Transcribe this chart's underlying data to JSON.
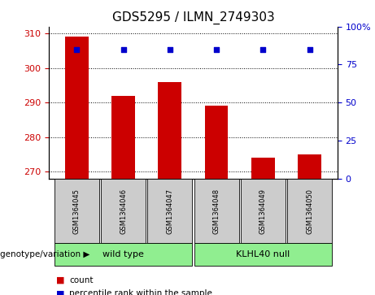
{
  "title": "GDS5295 / ILMN_2749303",
  "samples": [
    "GSM1364045",
    "GSM1364046",
    "GSM1364047",
    "GSM1364048",
    "GSM1364049",
    "GSM1364050"
  ],
  "counts": [
    309,
    292,
    296,
    289,
    274,
    275
  ],
  "percentile_ranks": [
    85,
    85,
    85,
    85,
    85,
    85
  ],
  "ylim_left": [
    268,
    312
  ],
  "ylim_right": [
    0,
    100
  ],
  "yticks_left": [
    270,
    280,
    290,
    300,
    310
  ],
  "yticks_right": [
    0,
    25,
    50,
    75,
    100
  ],
  "bar_color": "#cc0000",
  "dot_color": "#0000cc",
  "bar_width": 0.5,
  "groups": [
    {
      "label": "wild type",
      "indices": [
        0,
        1,
        2
      ],
      "color": "#90ee90"
    },
    {
      "label": "KLHL40 null",
      "indices": [
        3,
        4,
        5
      ],
      "color": "#90ee90"
    }
  ],
  "legend_count_label": "count",
  "legend_pct_label": "percentile rank within the sample",
  "genotype_label": "genotype/variation",
  "tick_color_left": "#cc0000",
  "tick_color_right": "#0000cc",
  "title_fontsize": 11,
  "axis_fontsize": 8,
  "sample_fontsize": 6,
  "group_fontsize": 8,
  "legend_fontsize": 7.5,
  "genotype_fontsize": 7.5,
  "sample_box_color": "#cccccc",
  "plot_bg": "#ffffff"
}
